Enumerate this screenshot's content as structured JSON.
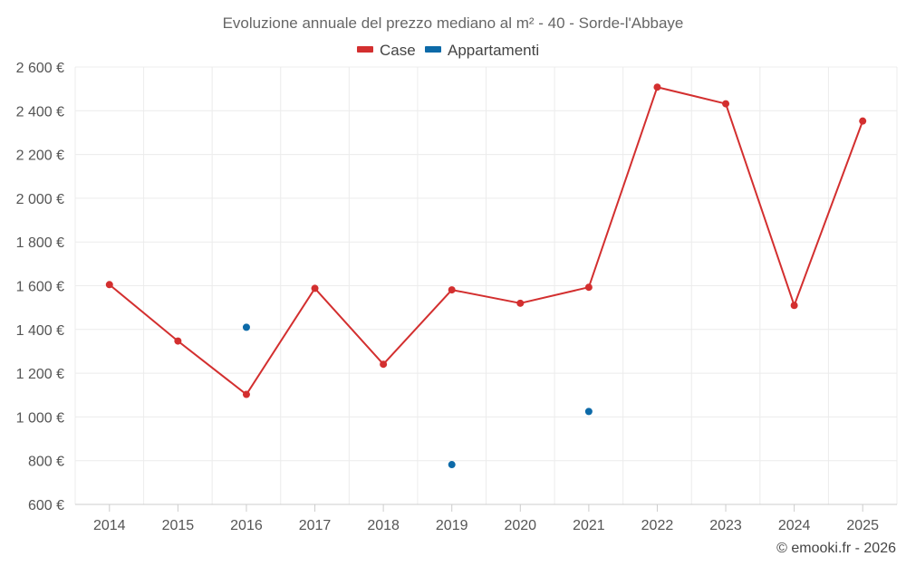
{
  "chart_data": {
    "type": "line",
    "title": "Evoluzione annuale del prezzo mediano al m² - 40 - Sorde-l'Abbaye",
    "categories": [
      "2014",
      "2015",
      "2016",
      "2017",
      "2018",
      "2019",
      "2020",
      "2021",
      "2022",
      "2023",
      "2024",
      "2025"
    ],
    "series": [
      {
        "name": "Case",
        "color": "#d32f2f",
        "style": "line-markers",
        "values": [
          1605,
          1347,
          1103,
          1588,
          1241,
          1581,
          1520,
          1593,
          2508,
          2432,
          1510,
          2353
        ]
      },
      {
        "name": "Appartamenti",
        "color": "#0d6aa8",
        "style": "markers",
        "values": [
          null,
          null,
          1410,
          null,
          null,
          782,
          null,
          1025,
          null,
          null,
          null,
          null
        ]
      }
    ],
    "ylim": [
      600,
      2600
    ],
    "yticks": [
      600,
      800,
      1000,
      1200,
      1400,
      1600,
      1800,
      2000,
      2200,
      2400,
      2600
    ],
    "ytick_labels": [
      "600 €",
      "800 €",
      "1 000 €",
      "1 200 €",
      "1 400 €",
      "1 600 €",
      "1 800 €",
      "2 000 €",
      "2 200 €",
      "2 400 €",
      "2 600 €"
    ],
    "xlabel": "",
    "ylabel": "",
    "grid": true,
    "legend_position": "top-center"
  },
  "credit": "© emooki.fr - 2026"
}
